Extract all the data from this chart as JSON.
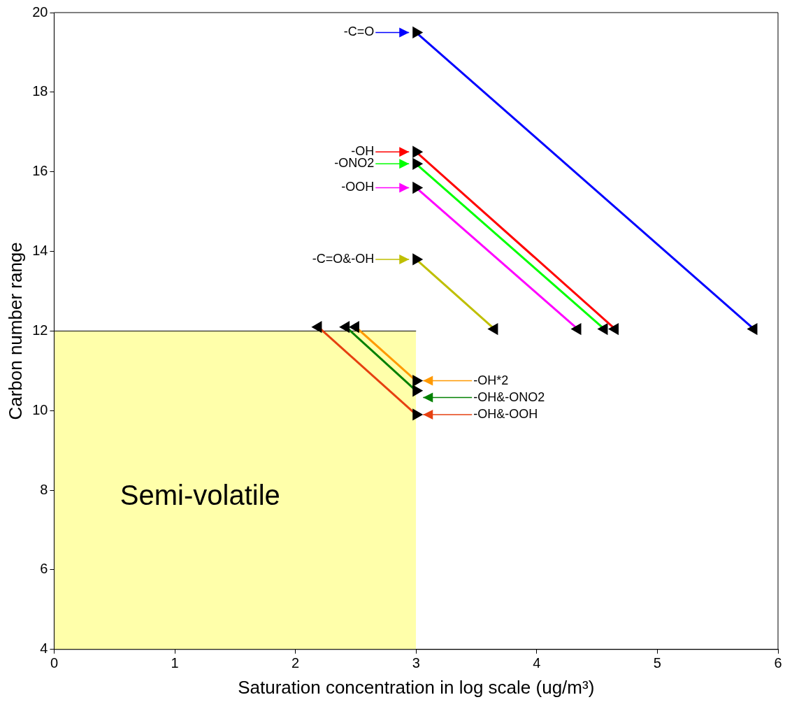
{
  "chart_data": {
    "type": "line",
    "xlabel": "Saturation concentration in log scale (ug/m³)",
    "ylabel": "Carbon number range",
    "xlim": [
      0,
      6
    ],
    "xticks": [
      0,
      1,
      2,
      3,
      4,
      5,
      6
    ],
    "ylim": [
      4,
      20
    ],
    "yticks": [
      4,
      6,
      8,
      10,
      12,
      14,
      16,
      18,
      20
    ],
    "grid": false,
    "legend": "top",
    "series": [
      {
        "name": "Semi-volatile",
        "type": "area",
        "marker": "none",
        "color": "#ffffaa",
        "x": [
          0,
          3
        ],
        "values": [
          12,
          12
        ]
      },
      {
        "name": "-C=O",
        "marker": "triangle",
        "color": "#0000ff",
        "x": [
          3,
          5.8
        ],
        "values": [
          19.5,
          12.05
        ]
      },
      {
        "name": "-OH",
        "marker": "triangle",
        "color": "#ff0000",
        "x": [
          3,
          4.65
        ],
        "values": [
          16.5,
          12.05
        ]
      },
      {
        "name": "-ONO2",
        "marker": "triangle",
        "color": "#00ff00",
        "x": [
          3,
          4.56
        ],
        "values": [
          16.2,
          12.05
        ]
      },
      {
        "name": "-OOH",
        "marker": "triangle",
        "color": "#ff00ff",
        "x": [
          3,
          4.34
        ],
        "values": [
          15.6,
          12.05
        ]
      },
      {
        "name": "-C=O&-OH",
        "marker": "triangle",
        "color": "#bfbf00",
        "x": [
          3,
          3.65
        ],
        "values": [
          13.8,
          12.05
        ]
      },
      {
        "name": "-OH*2",
        "marker": "triangle",
        "color": "#ff9900",
        "x": [
          3,
          2.5
        ],
        "values": [
          10.75,
          12.1
        ]
      },
      {
        "name": "-OH&-ONO2",
        "marker": "triangle",
        "color": "#008000",
        "x": [
          3,
          2.42
        ],
        "values": [
          10.5,
          12.1
        ]
      },
      {
        "name": "-OH&-OOH",
        "marker": "triangle",
        "color": "#e64010",
        "x": [
          3,
          2.19
        ],
        "values": [
          9.9,
          12.1
        ]
      }
    ]
  }
}
